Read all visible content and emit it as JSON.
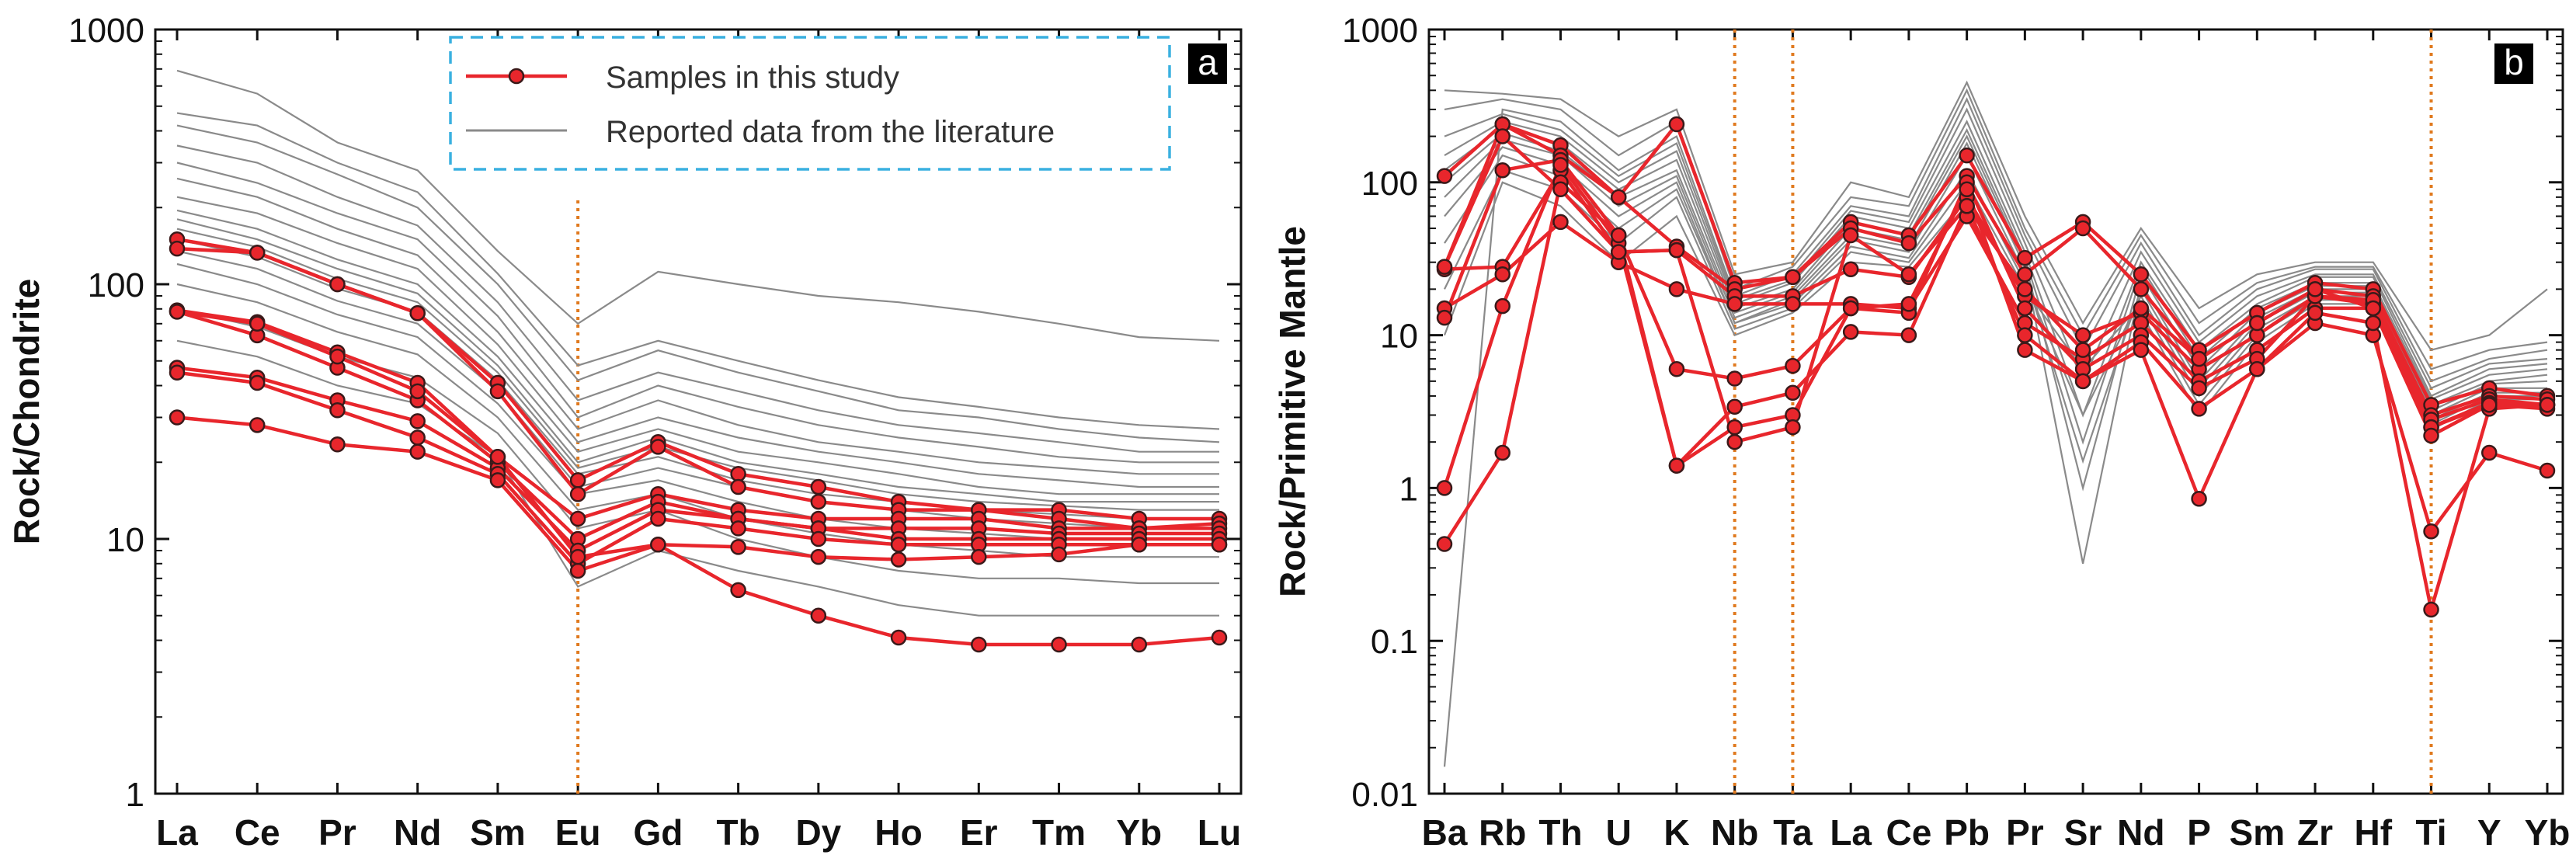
{
  "chart_data": [
    {
      "type": "line",
      "panel_label": "a",
      "title": "",
      "xlabel": "",
      "ylabel": "Rock/Chondrite",
      "yscale": "log",
      "ylim": [
        1,
        1000
      ],
      "yticks": [
        "1",
        "10",
        "100",
        "1000"
      ],
      "categories": [
        "La",
        "Ce",
        "Pr",
        "Nd",
        "Sm",
        "Eu",
        "Gd",
        "Tb",
        "Dy",
        "Ho",
        "Er",
        "Tm",
        "Yb",
        "Lu"
      ],
      "marker_lines": [
        "Eu"
      ],
      "legend": {
        "position": "top-right",
        "entries": [
          "Samples in this study",
          "Reported data from the literature"
        ]
      },
      "series": [
        {
          "name": "Samples in this study",
          "values": [
            150,
            133,
            100,
            77,
            41,
            17,
            24,
            18,
            16,
            14,
            13,
            13,
            12,
            12
          ]
        },
        {
          "name": "Samples in this study",
          "values": [
            138,
            133,
            100,
            77,
            38,
            15,
            23,
            16,
            14,
            13,
            13,
            12,
            11,
            11.5
          ]
        },
        {
          "name": "Samples in this study",
          "values": [
            79,
            71,
            54,
            41,
            21,
            12,
            15,
            13,
            12,
            12,
            12,
            11,
            11,
            11
          ]
        },
        {
          "name": "Samples in this study",
          "values": [
            78,
            63,
            47,
            35,
            20,
            10,
            14,
            12,
            11,
            11,
            11,
            10.5,
            10.5,
            10.5
          ]
        },
        {
          "name": "Samples in this study",
          "values": [
            47,
            43,
            35,
            29,
            19,
            9,
            13,
            12,
            11,
            10,
            10,
            10,
            10,
            10
          ]
        },
        {
          "name": "Samples in this study",
          "values": [
            45,
            41,
            32,
            25,
            18,
            8,
            12,
            11,
            10,
            9.5,
            9.5,
            9.5,
            9.5,
            9.5
          ]
        },
        {
          "name": "Samples in this study",
          "values": [
            30,
            28,
            23.5,
            22,
            17,
            7.5,
            9.5,
            9.3,
            8.5,
            8.3,
            8.5,
            8.7,
            9.5,
            9.5
          ]
        },
        {
          "name": "Samples in this study",
          "values": [
            78,
            70,
            52,
            38,
            21,
            8.5,
            9.5,
            6.3,
            5,
            4.1,
            3.85,
            3.85,
            3.85,
            4.1
          ]
        },
        {
          "name": "Reported data from the literature",
          "values": [
            690,
            560,
            360,
            280,
            135,
            70,
            112,
            100,
            90,
            85,
            78,
            70,
            62,
            60
          ]
        },
        {
          "name": "Reported data from the literature",
          "values": [
            470,
            420,
            300,
            230,
            110,
            48,
            60,
            50,
            42,
            36,
            33,
            30,
            28,
            27
          ]
        },
        {
          "name": "Reported data from the literature",
          "values": [
            420,
            360,
            270,
            200,
            100,
            42,
            55,
            45,
            38,
            32,
            30,
            27,
            25,
            24
          ]
        },
        {
          "name": "Reported data from the literature",
          "values": [
            350,
            300,
            220,
            170,
            85,
            35,
            45,
            38,
            32,
            28,
            26,
            24,
            22,
            22
          ]
        },
        {
          "name": "Reported data from the literature",
          "values": [
            300,
            250,
            190,
            150,
            75,
            30,
            40,
            33,
            28,
            25,
            23,
            21,
            20,
            20
          ]
        },
        {
          "name": "Reported data from the literature",
          "values": [
            260,
            220,
            165,
            130,
            65,
            27,
            35,
            28,
            24,
            22,
            20,
            19,
            18,
            18
          ]
        },
        {
          "name": "Reported data from the literature",
          "values": [
            220,
            190,
            145,
            115,
            58,
            24,
            30,
            25,
            22,
            20,
            18,
            17,
            16,
            16
          ]
        },
        {
          "name": "Reported data from the literature",
          "values": [
            195,
            165,
            125,
            100,
            52,
            22,
            27,
            22,
            20,
            18,
            16,
            15,
            15,
            15
          ]
        },
        {
          "name": "Reported data from the literature",
          "values": [
            180,
            150,
            115,
            92,
            48,
            20,
            25,
            20,
            18,
            16,
            15,
            14,
            14,
            14
          ]
        },
        {
          "name": "Reported data from the literature",
          "values": [
            165,
            140,
            105,
            85,
            45,
            19,
            23,
            19,
            17,
            15,
            14,
            13.5,
            13,
            13
          ]
        },
        {
          "name": "Reported data from the literature",
          "values": [
            150,
            128,
            96,
            78,
            42,
            18,
            21,
            17,
            15,
            14,
            13,
            12.5,
            12,
            12
          ]
        },
        {
          "name": "Reported data from the literature",
          "values": [
            135,
            115,
            86,
            70,
            38,
            16,
            19,
            16,
            14,
            13,
            12,
            11.5,
            11,
            11
          ]
        },
        {
          "name": "Reported data from the literature",
          "values": [
            120,
            100,
            76,
            62,
            34,
            15,
            17,
            14,
            12,
            11,
            10.5,
            10,
            10,
            10
          ]
        },
        {
          "name": "Reported data from the literature",
          "values": [
            100,
            85,
            65,
            53,
            30,
            13,
            15,
            12,
            10.5,
            9.5,
            9,
            8.5,
            8.5,
            8.5
          ]
        },
        {
          "name": "Reported data from the literature",
          "values": [
            80,
            68,
            52,
            43,
            26,
            11,
            13,
            10,
            8.5,
            7.5,
            7,
            7,
            6.7,
            6.7
          ]
        },
        {
          "name": "Reported data from the literature",
          "values": [
            60,
            52,
            40,
            34,
            21,
            6.5,
            9,
            7.5,
            6.5,
            5.5,
            5,
            5,
            5,
            5
          ]
        }
      ]
    },
    {
      "type": "line",
      "panel_label": "b",
      "title": "",
      "xlabel": "",
      "ylabel": "Rock/Primitive Mantle",
      "yscale": "log",
      "ylim": [
        0.01,
        1000
      ],
      "yticks": [
        "0.01",
        "0.1",
        "1",
        "10",
        "100",
        "1000"
      ],
      "categories": [
        "Ba",
        "Rb",
        "Th",
        "U",
        "K",
        "Nb",
        "Ta",
        "La",
        "Ce",
        "Pb",
        "Pr",
        "Sr",
        "Nd",
        "P",
        "Sm",
        "Zr",
        "Hf",
        "Ti",
        "Y",
        "Yb"
      ],
      "marker_lines": [
        "Nb",
        "Ta",
        "Ti"
      ],
      "series": [
        {
          "name": "Samples in this study",
          "values": [
            110,
            240,
            175,
            80,
            240,
            22,
            24,
            55,
            45,
            150,
            32,
            55,
            25,
            8,
            14,
            22,
            20,
            3.5,
            4.5,
            4
          ]
        },
        {
          "name": "Samples in this study",
          "values": [
            28,
            240,
            150,
            80,
            38,
            20,
            24,
            50,
            40,
            110,
            25,
            50,
            20,
            7,
            12,
            20,
            18,
            3,
            4,
            3.8
          ]
        },
        {
          "name": "Samples in this study",
          "values": [
            27,
            28,
            120,
            35,
            36,
            18,
            18,
            27,
            24,
            80,
            18,
            10,
            14,
            6,
            10,
            18,
            16,
            2.8,
            3.8,
            3.5
          ]
        },
        {
          "name": "Samples in this study",
          "values": [
            15,
            25,
            55,
            30,
            20,
            16,
            16,
            16,
            15,
            60,
            12,
            7,
            12,
            5,
            8,
            15,
            15,
            2.5,
            3.6,
            3.5
          ]
        },
        {
          "name": "Samples in this study",
          "values": [
            13,
            120,
            140,
            45,
            6,
            5.2,
            6.3,
            15,
            14,
            100,
            15,
            6,
            10,
            4.5,
            7,
            18,
            17,
            2.5,
            3.5,
            3.3
          ]
        },
        {
          "name": "Samples in this study",
          "values": [
            1,
            15.5,
            130,
            40,
            1.4,
            3.4,
            4.2,
            10.5,
            10,
            70,
            10,
            5,
            9,
            3.3,
            6,
            12,
            10,
            0.52,
            1.7,
            1.3
          ]
        },
        {
          "name": "Samples in this study",
          "values": [
            0.43,
            1.7,
            100,
            45,
            1.4,
            2.5,
            3,
            15,
            16,
            90,
            8,
            5,
            8,
            0.85,
            6,
            14,
            12,
            0.16,
            3.3,
            3.5
          ]
        },
        {
          "name": "Samples in this study",
          "values": [
            28,
            200,
            90,
            35,
            36,
            2,
            2.5,
            45,
            25,
            70,
            20,
            8,
            15,
            7,
            12,
            20,
            15,
            2.2,
            3.5,
            3.5
          ]
        },
        {
          "name": "Reported data from the literature",
          "values": [
            400,
            380,
            350,
            200,
            300,
            25,
            30,
            100,
            80,
            450,
            60,
            12,
            50,
            15,
            25,
            30,
            30,
            8,
            10,
            20
          ]
        },
        {
          "name": "Reported data from the literature",
          "values": [
            300,
            350,
            300,
            150,
            250,
            20,
            28,
            80,
            70,
            400,
            50,
            10,
            45,
            12,
            22,
            28,
            28,
            6,
            8,
            9
          ]
        },
        {
          "name": "Reported data from the literature",
          "values": [
            0.015,
            300,
            250,
            120,
            200,
            18,
            25,
            70,
            60,
            350,
            45,
            8,
            40,
            10,
            20,
            27,
            27,
            5,
            7,
            8
          ]
        },
        {
          "name": "Reported data from the literature",
          "values": [
            200,
            280,
            220,
            110,
            180,
            17,
            23,
            65,
            55,
            300,
            40,
            5,
            35,
            9,
            18,
            25,
            25,
            4.5,
            6.5,
            7
          ]
        },
        {
          "name": "Reported data from the literature",
          "values": [
            150,
            250,
            200,
            100,
            160,
            16,
            22,
            60,
            50,
            250,
            35,
            3,
            30,
            8,
            16,
            24,
            24,
            4,
            6,
            6.5
          ]
        },
        {
          "name": "Reported data from the literature",
          "values": [
            120,
            230,
            180,
            90,
            140,
            15,
            20,
            55,
            45,
            220,
            32,
            2,
            28,
            7,
            15,
            22,
            22,
            3.8,
            5.5,
            6
          ]
        },
        {
          "name": "Reported data from the literature",
          "values": [
            100,
            210,
            160,
            80,
            120,
            14,
            19,
            50,
            42,
            200,
            30,
            1,
            25,
            6,
            14,
            21,
            21,
            3.5,
            5,
            5.5
          ]
        },
        {
          "name": "Reported data from the literature",
          "values": [
            80,
            190,
            150,
            70,
            110,
            13,
            18,
            45,
            38,
            180,
            28,
            0.32,
            22,
            5,
            13,
            20,
            20,
            3.2,
            4.8,
            5
          ]
        },
        {
          "name": "Reported data from the literature",
          "values": [
            60,
            170,
            130,
            60,
            100,
            12,
            17,
            42,
            35,
            150,
            25,
            1.5,
            20,
            4.5,
            12,
            19,
            19,
            3,
            4.5,
            4.5
          ]
        },
        {
          "name": "Reported data from the literature",
          "values": [
            40,
            150,
            110,
            50,
            90,
            12,
            16,
            38,
            32,
            120,
            22,
            3,
            18,
            4,
            11,
            18,
            18,
            2.8,
            4.2,
            4.2
          ]
        },
        {
          "name": "Reported data from the literature",
          "values": [
            20,
            120,
            90,
            40,
            80,
            11,
            15,
            35,
            30,
            100,
            20,
            6,
            16,
            3.5,
            10,
            17,
            17,
            2.6,
            4,
            4
          ]
        },
        {
          "name": "Reported data from the literature",
          "values": [
            10,
            100,
            70,
            30,
            60,
            10,
            14,
            30,
            28,
            80,
            18,
            10,
            14,
            3,
            9,
            16,
            16,
            2.4,
            3.8,
            3.8
          ]
        }
      ]
    }
  ]
}
